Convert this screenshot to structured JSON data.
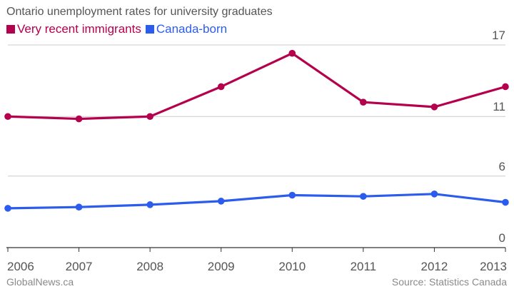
{
  "chart_data": {
    "type": "line",
    "title": "Ontario unemployment rates for university graduates",
    "x": [
      "2006",
      "2007",
      "2008",
      "2009",
      "2010",
      "2011",
      "2012",
      "2013"
    ],
    "series": [
      {
        "name": "Very recent immigrants",
        "color": "#b5004e",
        "values": [
          11.0,
          10.8,
          11.0,
          13.5,
          16.3,
          12.2,
          11.8,
          13.5
        ]
      },
      {
        "name": "Canada-born",
        "color": "#2b5ced",
        "values": [
          3.3,
          3.4,
          3.6,
          3.9,
          4.4,
          4.3,
          4.5,
          3.8
        ]
      }
    ],
    "yticks": [
      "0",
      "6",
      "11",
      "17"
    ],
    "ylim": [
      0,
      17.3
    ],
    "grid": true,
    "legend": "top-left"
  },
  "footer": {
    "credit": "GlobalNews.ca",
    "source": "Source: Statistics Canada"
  }
}
